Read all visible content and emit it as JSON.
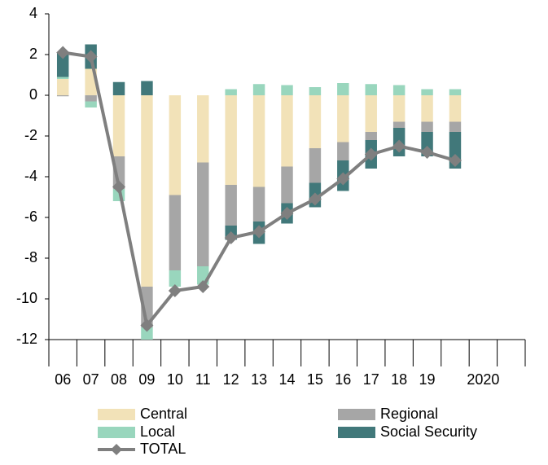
{
  "chart_data": {
    "type": "stacked-bar-line",
    "categories": [
      "06",
      "07",
      "08",
      "09",
      "10",
      "11",
      "12",
      "13",
      "14",
      "15",
      "16",
      "17",
      "18",
      "19",
      null,
      "2020",
      null
    ],
    "series": [
      {
        "name": "Central",
        "color": "#f2e2b8",
        "values": [
          0.8,
          1.3,
          -3.0,
          -9.4,
          -4.9,
          -3.3,
          -4.4,
          -4.5,
          -3.5,
          -2.6,
          -2.3,
          -1.8,
          -1.3,
          -1.3,
          -1.3,
          null,
          null
        ]
      },
      {
        "name": "Regional",
        "color": "#a6a6a6",
        "values": [
          -0.05,
          -0.3,
          -1.6,
          -2.0,
          -3.7,
          -5.1,
          -2.0,
          -1.7,
          -1.8,
          -1.7,
          -0.9,
          -0.4,
          -0.3,
          -0.5,
          -0.5,
          null,
          null
        ]
      },
      {
        "name": "Local",
        "color": "#99d6bd",
        "values": [
          0.1,
          -0.3,
          -0.6,
          -0.6,
          -0.8,
          -0.9,
          0.3,
          0.55,
          0.5,
          0.4,
          0.6,
          0.55,
          0.5,
          0.3,
          0.3,
          null,
          null
        ]
      },
      {
        "name": "Social Security",
        "color": "#41787a",
        "values": [
          1.2,
          1.2,
          0.65,
          0.7,
          0,
          0,
          -0.7,
          -1.1,
          -1.0,
          -1.2,
          -1.5,
          -1.4,
          -1.4,
          -1.2,
          -1.8,
          null,
          null
        ]
      },
      {
        "name": "TOTAL",
        "color": "#7f7f7f",
        "kind": "line",
        "values": [
          2.1,
          1.9,
          -4.5,
          -11.3,
          -9.6,
          -9.4,
          -7.0,
          -6.7,
          -5.8,
          -5.1,
          -4.1,
          -2.9,
          -2.5,
          -2.8,
          -3.2,
          null,
          null
        ]
      }
    ],
    "ylim": [
      -12,
      4
    ],
    "yticks": [
      4,
      2,
      0,
      -2,
      -4,
      -6,
      -8,
      -10,
      -12
    ]
  }
}
